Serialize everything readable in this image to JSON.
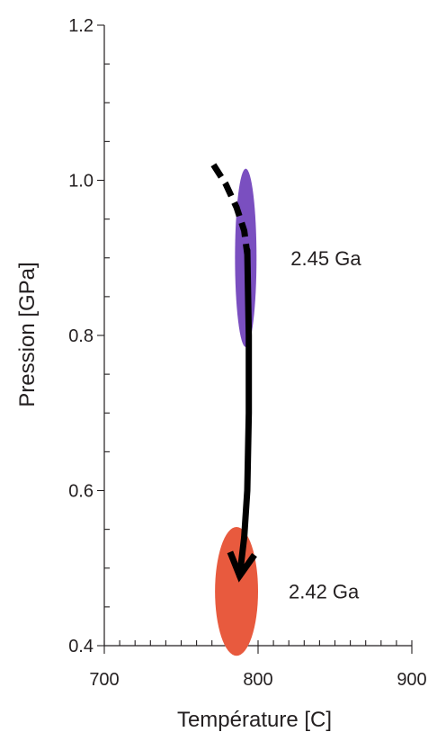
{
  "chart_data": {
    "type": "scatter",
    "xlabel": "Température [C]",
    "ylabel": "Pression [GPa]",
    "xlim": [
      700,
      900
    ],
    "ylim": [
      0.4,
      1.2
    ],
    "x_ticks": [
      700,
      800,
      900
    ],
    "x_tick_labels": [
      "700",
      "800",
      "900"
    ],
    "y_ticks": [
      0.4,
      0.6,
      0.8,
      1.0,
      1.2
    ],
    "y_tick_labels": [
      "0.4",
      "0.6",
      "0.8",
      "1.0",
      "1.2"
    ],
    "x_minor_step": 10,
    "y_minor_step": 0.05,
    "grid": false,
    "ellipses": [
      {
        "label": "2.45 Ga",
        "cx": 792,
        "cy": 0.9,
        "rx": 7,
        "ry": 0.115,
        "color": "#7a4fc0"
      },
      {
        "label": "2.42 Ga",
        "cx": 786,
        "cy": 0.47,
        "rx": 14,
        "ry": 0.083,
        "color": "#e85a3e"
      }
    ],
    "path_dashed": {
      "color": "#000000",
      "points": [
        [
          771,
          1.02
        ],
        [
          779,
          0.995
        ],
        [
          786,
          0.965
        ],
        [
          791,
          0.935
        ],
        [
          793,
          0.905
        ]
      ]
    },
    "path_solid": {
      "color": "#000000",
      "points": [
        [
          793,
          0.91
        ],
        [
          794,
          0.8
        ],
        [
          794,
          0.7
        ],
        [
          793,
          0.6
        ],
        [
          791,
          0.54
        ],
        [
          788,
          0.49
        ]
      ]
    }
  }
}
